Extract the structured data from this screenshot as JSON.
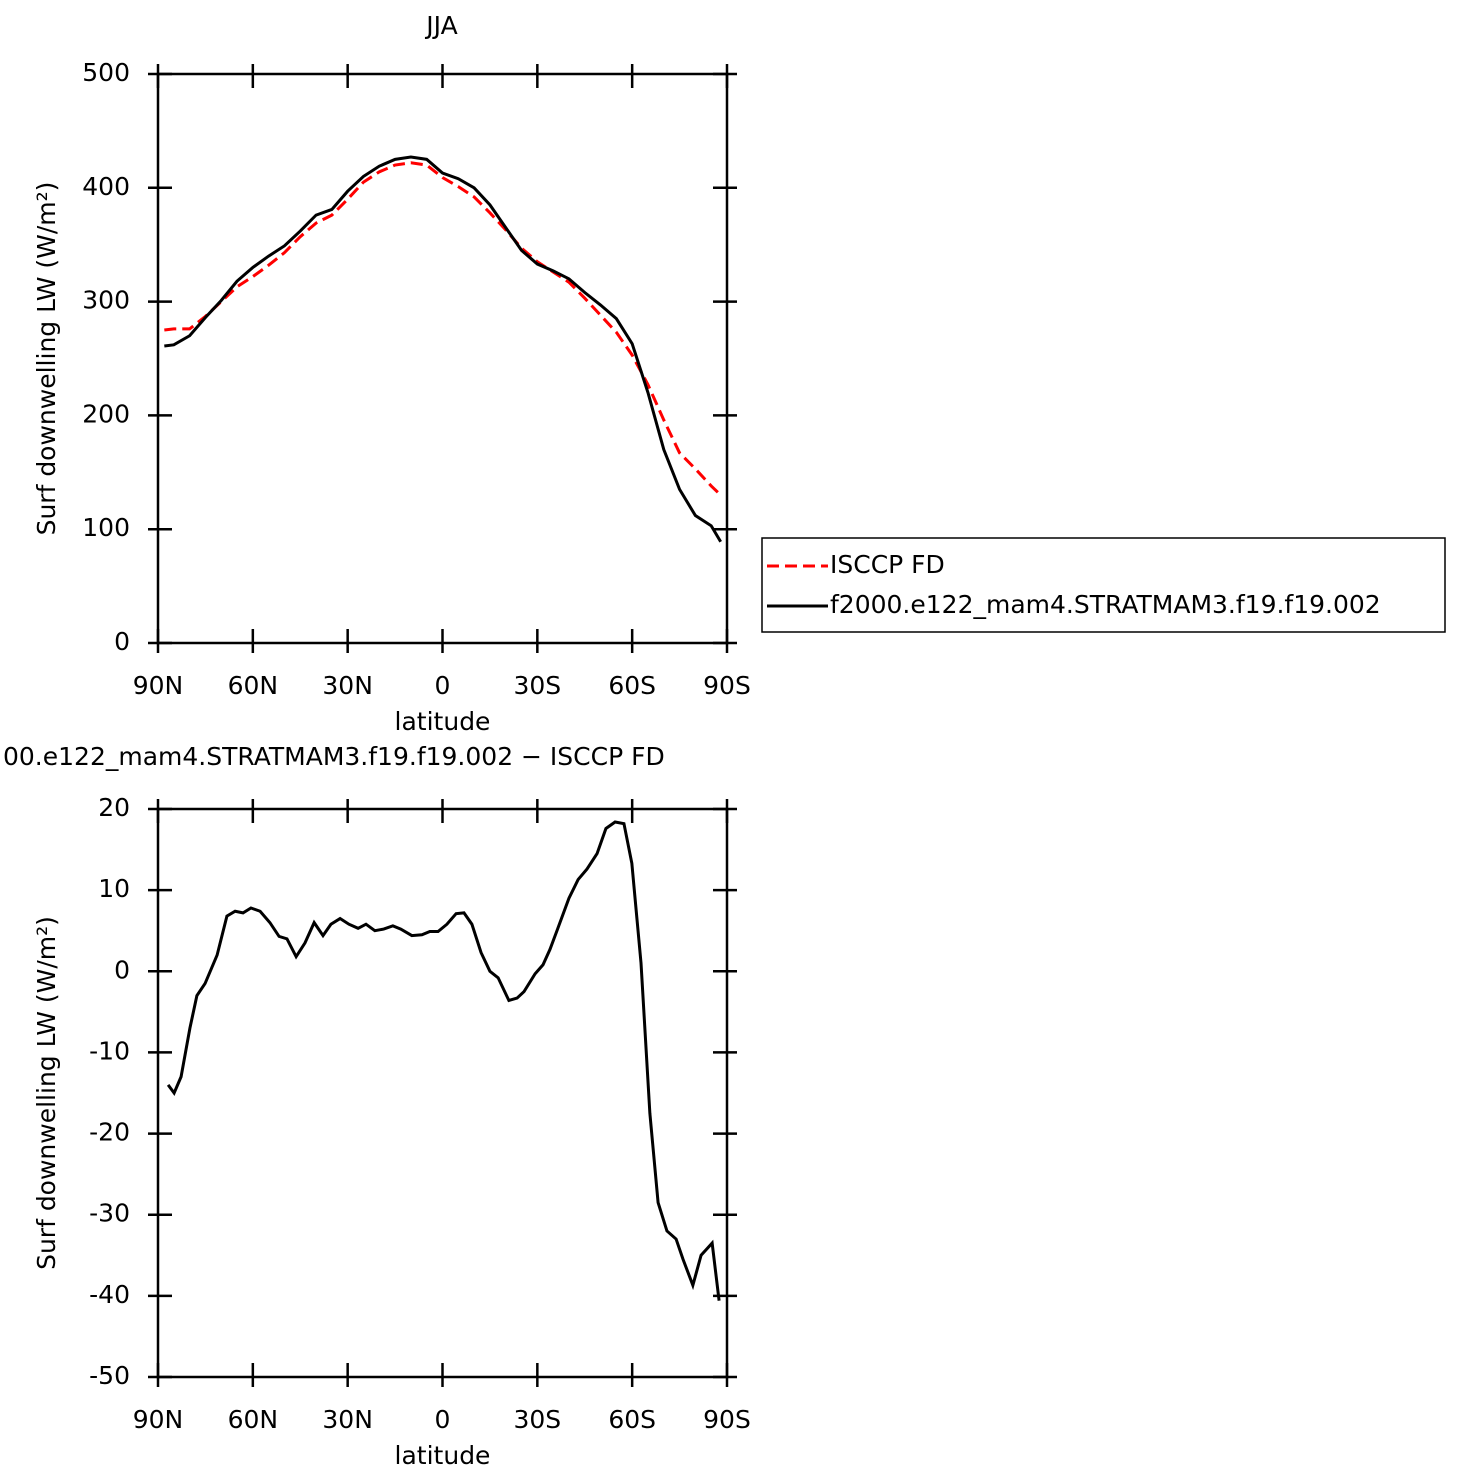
{
  "chart_data": [
    {
      "type": "line",
      "title": "JJA",
      "xlabel": "latitude",
      "ylabel": "Surf downwelling LW (W/m²)",
      "x": [
        88,
        85,
        80,
        75,
        70,
        65,
        60,
        55,
        50,
        45,
        40,
        35,
        30,
        25,
        20,
        15,
        10,
        5,
        0,
        -5,
        -10,
        -15,
        -20,
        -25,
        -30,
        -35,
        -40,
        -45,
        -50,
        -55,
        -60,
        -65,
        -70,
        -75,
        -80,
        -85,
        -88
      ],
      "series": [
        {
          "name": "ISCCP FD",
          "color": "#ff0000",
          "dash": true,
          "values": [
            275,
            276,
            276,
            287,
            300,
            313,
            322,
            332,
            343,
            357,
            369,
            376,
            390,
            405,
            414,
            420,
            422,
            420,
            409,
            401,
            392,
            378,
            363,
            347,
            335,
            326,
            317,
            303,
            288,
            273,
            253,
            227,
            196,
            167,
            153,
            138,
            130
          ]
        },
        {
          "name": "f2000.e122_mam4.STRATMAM3.f19.f19.002",
          "color": "#000000",
          "dash": false,
          "values": [
            261,
            262,
            270,
            286,
            301,
            318,
            330,
            340,
            349,
            362,
            376,
            381,
            397,
            410,
            419,
            425,
            427,
            425,
            413,
            408,
            400,
            385,
            365,
            345,
            333,
            327,
            320,
            308,
            297,
            285,
            263,
            220,
            170,
            135,
            112,
            103,
            89
          ]
        }
      ],
      "xlim": [
        90,
        -90
      ],
      "xticks": [
        {
          "value": 90,
          "label": "90N"
        },
        {
          "value": 60,
          "label": "60N"
        },
        {
          "value": 30,
          "label": "30N"
        },
        0,
        {
          "value": -30,
          "label": "30S"
        },
        {
          "value": -60,
          "label": "60S"
        },
        {
          "value": -90,
          "label": "90S"
        }
      ],
      "ylim": [
        0,
        500
      ],
      "yticks": [
        0,
        100,
        200,
        300,
        400,
        500
      ],
      "legend": "right"
    },
    {
      "type": "line",
      "title": "00.e122_mam4.STRATMAM3.f19.f19.002 − ISCCP FD",
      "xlabel": "latitude",
      "ylabel": "Surf downwelling LW (W/m²)",
      "x": [
        86.8,
        84.9,
        82.7,
        79.9,
        77.7,
        75.1,
        71.3,
        68.2,
        65.6,
        63.1,
        60.6,
        57.7,
        54.6,
        51.7,
        49.2,
        46.3,
        43.5,
        40.6,
        37.8,
        35.3,
        32.4,
        29.6,
        26.7,
        24.2,
        21.4,
        18.6,
        15.7,
        13.2,
        9.7,
        6.5,
        4.0,
        1.4,
        -1.4,
        -4.3,
        -6.8,
        -9.3,
        -12.2,
        -15.0,
        -17.6,
        -21.0,
        -23.6,
        -25.8,
        -29.3,
        -31.8,
        -34.0,
        -36.5,
        -40.0,
        -42.9,
        -45.7,
        -48.9,
        -51.7,
        -54.6,
        -57.4,
        -59.9,
        -62.8,
        -65.6,
        -68.2,
        -71.0,
        -73.9,
        -76.1,
        -79.2,
        -81.8,
        -85.3,
        -87.5
      ],
      "series": [
        {
          "color": "#000000",
          "dash": false,
          "values": [
            -14,
            -15,
            -13,
            -7,
            -3,
            -1.5,
            2,
            6.8,
            7.4,
            7.2,
            7.8,
            7.4,
            6,
            4.3,
            4,
            1.8,
            3.5,
            6,
            4.4,
            5.8,
            6.5,
            5.8,
            5.3,
            5.8,
            5,
            5.2,
            5.6,
            5.2,
            4.4,
            4.5,
            4.9,
            4.9,
            5.8,
            7.1,
            7.2,
            5.8,
            2.3,
            0,
            -0.8,
            -3.6,
            -3.3,
            -2.5,
            -0.3,
            0.8,
            2.7,
            5.3,
            9,
            11.3,
            12.6,
            14.5,
            17.6,
            18.4,
            18.2,
            13.3,
            1,
            -17.5,
            -28.5,
            -32,
            -33,
            -35.5,
            -38.7,
            -35,
            -33.5,
            -40.6
          ]
        }
      ],
      "xlim": [
        90,
        -90
      ],
      "xticks": [
        {
          "value": 90,
          "label": "90N"
        },
        {
          "value": 60,
          "label": "60N"
        },
        {
          "value": 30,
          "label": "30N"
        },
        0,
        {
          "value": -30,
          "label": "30S"
        },
        {
          "value": -60,
          "label": "60S"
        },
        {
          "value": -90,
          "label": "90S"
        }
      ],
      "ylim": [
        -50,
        20
      ],
      "yticks": [
        -50,
        -40,
        -30,
        -20,
        -10,
        0,
        10,
        20
      ]
    }
  ]
}
